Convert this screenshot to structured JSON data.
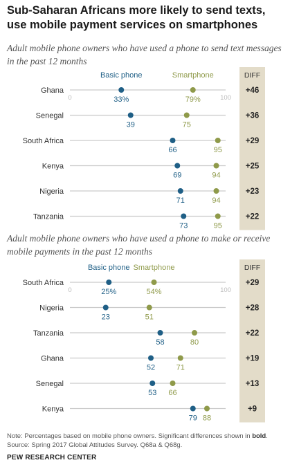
{
  "title": "Sub-Saharan Africans more likely to send texts, use mobile payment services on smartphones",
  "note_prefix": "Note: Percentages based on mobile phone owners. Significant differences shown in ",
  "note_bold": "bold",
  "note_suffix": ".",
  "source": "Source: Spring 2017 Global Attitudes Survey. Q68a & Q68g.",
  "footer": "PEW RESEARCH CENTER",
  "colors": {
    "basic": "#1f5f86",
    "smartphone": "#8f9a4a",
    "diff_bg": "#e3dcc9",
    "axis": "#c9c9c9"
  },
  "chart_data": [
    {
      "type": "dot-plot",
      "title": "Adult mobile phone owners who have used a phone to send text messages in the past 12 months",
      "series_names": [
        "Basic phone",
        "Smartphone"
      ],
      "diff_header": "DIFF",
      "xlim": [
        0,
        100
      ],
      "tick_labels": [
        "0",
        "100"
      ],
      "rows": [
        {
          "country": "Ghana",
          "basic": 33,
          "smartphone": 79,
          "basic_label": "33%",
          "smart_label": "79%",
          "diff": "+46"
        },
        {
          "country": "Senegal",
          "basic": 39,
          "smartphone": 75,
          "basic_label": "39",
          "smart_label": "75",
          "diff": "+36"
        },
        {
          "country": "South Africa",
          "basic": 66,
          "smartphone": 95,
          "basic_label": "66",
          "smart_label": "95",
          "diff": "+29"
        },
        {
          "country": "Kenya",
          "basic": 69,
          "smartphone": 94,
          "basic_label": "69",
          "smart_label": "94",
          "diff": "+25"
        },
        {
          "country": "Nigeria",
          "basic": 71,
          "smartphone": 94,
          "basic_label": "71",
          "smart_label": "94",
          "diff": "+23"
        },
        {
          "country": "Tanzania",
          "basic": 73,
          "smartphone": 95,
          "basic_label": "73",
          "smart_label": "95",
          "diff": "+22"
        }
      ]
    },
    {
      "type": "dot-plot",
      "title": "Adult mobile phone owners who have used a phone to make or receive mobile payments in the past 12 months",
      "series_names": [
        "Basic phone",
        "Smartphone"
      ],
      "diff_header": "DIFF",
      "xlim": [
        0,
        100
      ],
      "tick_labels": [
        "0",
        "100"
      ],
      "rows": [
        {
          "country": "South Africa",
          "basic": 25,
          "smartphone": 54,
          "basic_label": "25%",
          "smart_label": "54%",
          "diff": "+29"
        },
        {
          "country": "Nigeria",
          "basic": 23,
          "smartphone": 51,
          "basic_label": "23",
          "smart_label": "51",
          "diff": "+28"
        },
        {
          "country": "Tanzania",
          "basic": 58,
          "smartphone": 80,
          "basic_label": "58",
          "smart_label": "80",
          "diff": "+22"
        },
        {
          "country": "Ghana",
          "basic": 52,
          "smartphone": 71,
          "basic_label": "52",
          "smart_label": "71",
          "diff": "+19"
        },
        {
          "country": "Senegal",
          "basic": 53,
          "smartphone": 66,
          "basic_label": "53",
          "smart_label": "66",
          "diff": "+13"
        },
        {
          "country": "Kenya",
          "basic": 79,
          "smartphone": 88,
          "basic_label": "79",
          "smart_label": "88",
          "diff": "+9"
        }
      ]
    }
  ]
}
